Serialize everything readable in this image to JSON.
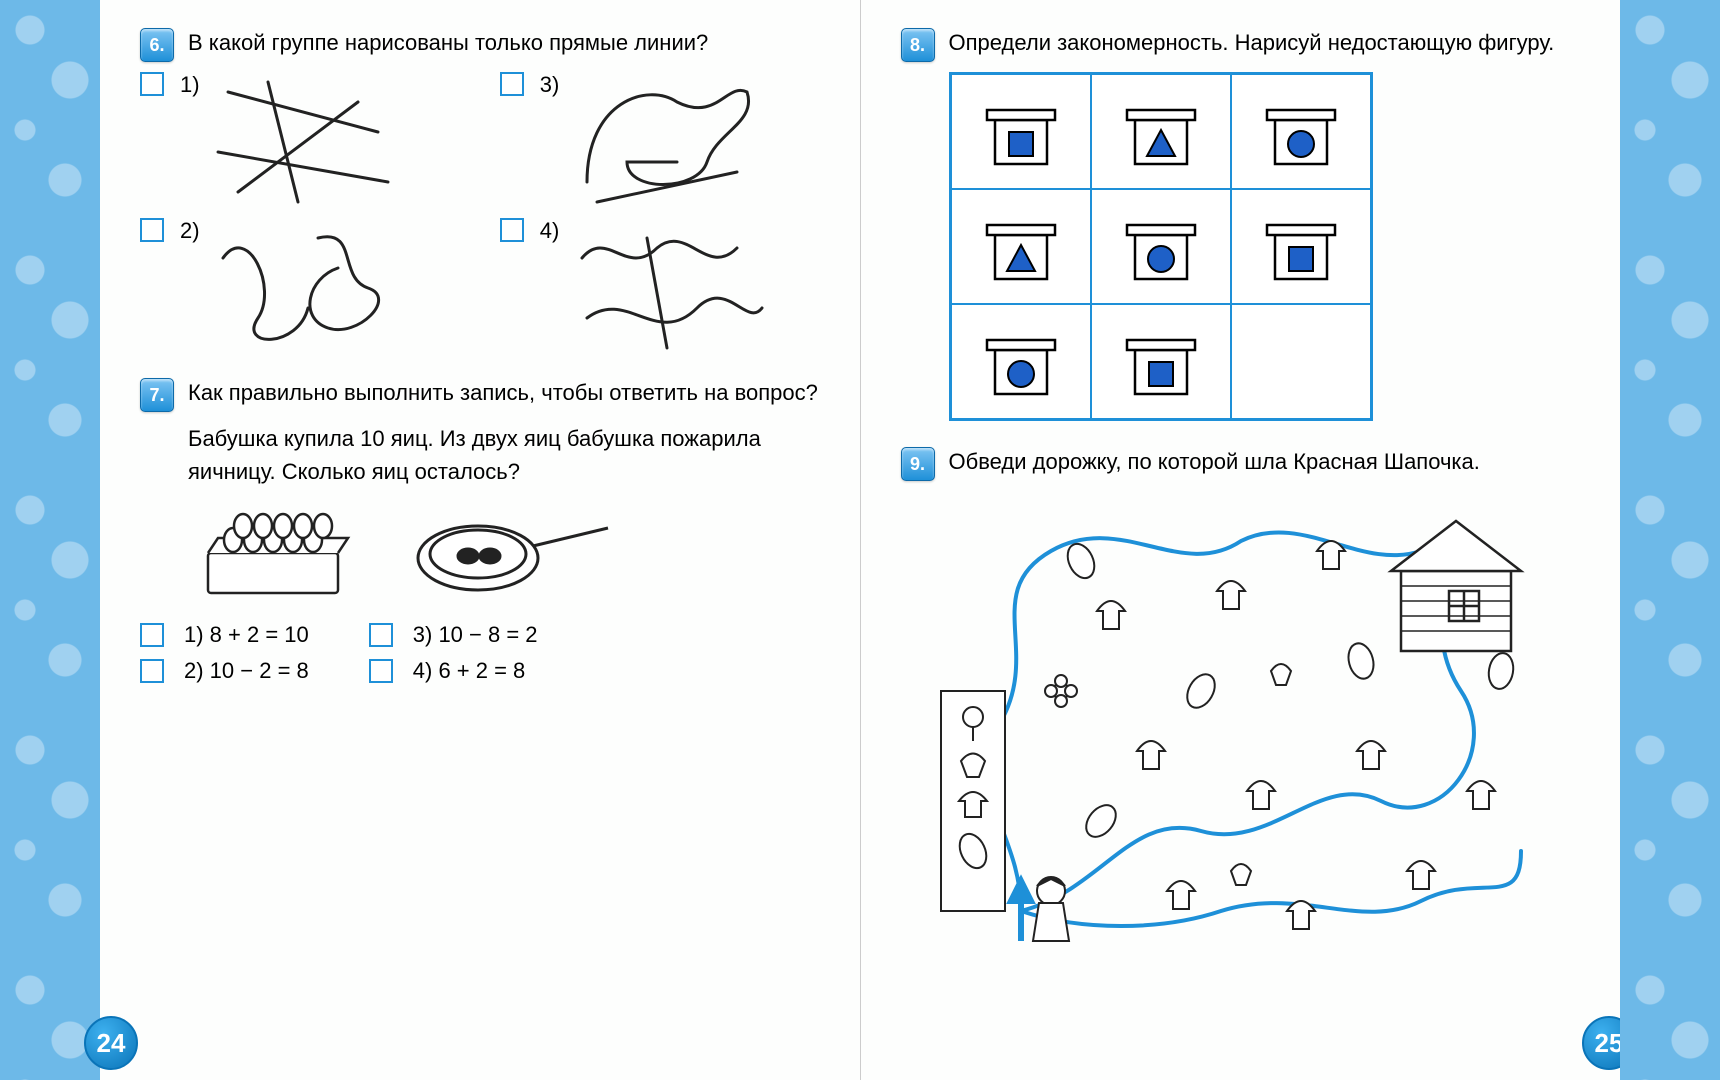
{
  "colors": {
    "accent": "#1e90d8",
    "accent_dark": "#0a74b8",
    "border_bg": "#6db9e8",
    "shape_fill": "#1e60c7",
    "ink": "#222222"
  },
  "typography": {
    "body_fontsize": 22,
    "qnum_fontsize": 18
  },
  "page_left_num": "24",
  "page_right_num": "25",
  "q6": {
    "num": "6.",
    "text": "В какой группе нарисованы только прямые линии?",
    "opts": [
      "1)",
      "2)",
      "3)",
      "4)"
    ]
  },
  "q7": {
    "num": "7.",
    "text": "Как правильно выполнить запись, чтобы ответить на вопрос?",
    "story": "Бабушка купила 10 яиц. Из двух яиц бабушка пожарила яичницу. Сколько яиц осталось?",
    "equations": [
      "1) 8 + 2 = 10",
      "2) 10 − 2 = 8",
      "3) 10 − 8 = 2",
      "4) 6 + 2 = 8"
    ]
  },
  "q8": {
    "num": "8.",
    "text": "Определи закономерность. Нарисуй недостающую фигуру.",
    "grid": [
      [
        "square",
        "triangle",
        "circle"
      ],
      [
        "triangle",
        "circle",
        "square"
      ],
      [
        "circle",
        "square",
        ""
      ]
    ],
    "shape_fill": "#1e60c7",
    "shape_stroke": "#000000",
    "grid_border_color": "#1e90d8"
  },
  "q9": {
    "num": "9.",
    "text": "Обведи дорожку, по которой шла Красная Шапочка."
  }
}
